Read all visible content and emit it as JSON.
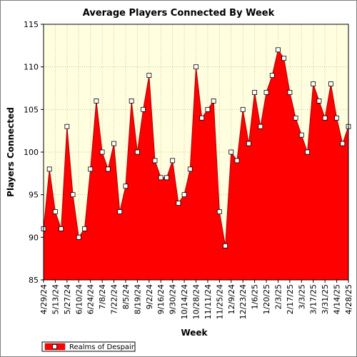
{
  "chart_data": {
    "type": "area",
    "title": "Average Players Connected By Week",
    "xlabel": "Week",
    "ylabel": "Players Connected",
    "ylim": [
      85,
      115
    ],
    "yticks": [
      85,
      90,
      95,
      100,
      105,
      110,
      115
    ],
    "grid": true,
    "legend_position": "bottom-left",
    "x_tick_labels": [
      "4/29/24",
      "5/13/24",
      "5/27/24",
      "6/10/24",
      "6/24/24",
      "7/8/24",
      "7/22/24",
      "8/5/24",
      "8/19/24",
      "9/2/24",
      "9/16/24",
      "9/30/24",
      "10/14/24",
      "10/28/24",
      "11/11/24",
      "11/25/24",
      "12/9/24",
      "12/23/24",
      "1/6/25",
      "1/20/25",
      "2/3/25",
      "2/17/25",
      "3/3/25",
      "3/17/25",
      "3/31/25",
      "4/14/25",
      "4/28/25"
    ],
    "series": [
      {
        "name": "Realms of Despair",
        "color": "#ff0000",
        "values": [
          91,
          98,
          93,
          91,
          103,
          95,
          90,
          91,
          98,
          106,
          100,
          98,
          101,
          93,
          96,
          106,
          100,
          105,
          109,
          99,
          97,
          97,
          99,
          94,
          95,
          98,
          110,
          104,
          105,
          106,
          93,
          89,
          100,
          99,
          105,
          101,
          107,
          103,
          107,
          109,
          112,
          111,
          107,
          104,
          102,
          100,
          108,
          106,
          104,
          108,
          104,
          101,
          103
        ]
      }
    ]
  }
}
